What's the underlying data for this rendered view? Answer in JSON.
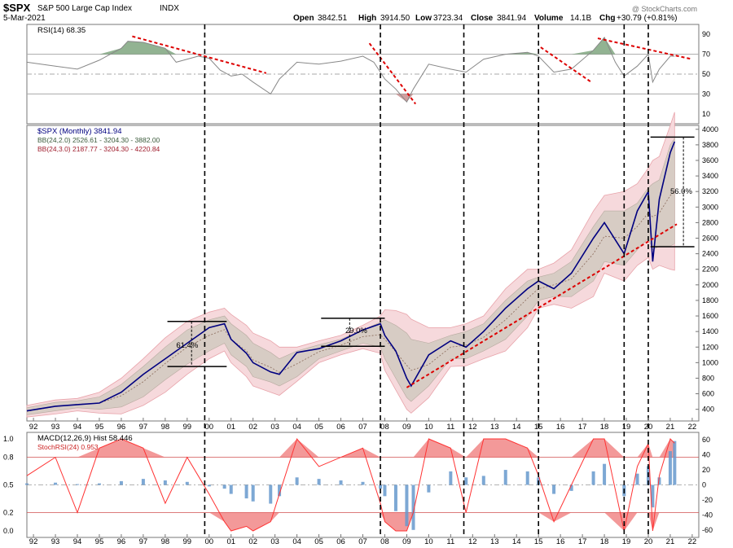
{
  "header": {
    "symbol": "$SPX",
    "name": "S&P 500 Large Cap Index",
    "exchange": "INDX",
    "date": "5-Mar-2021",
    "open_label": "Open",
    "open": "3842.51",
    "high_label": "High",
    "high": "3914.50",
    "low_label": "Low",
    "low": "3723.34",
    "close_label": "Close",
    "close": "3841.94",
    "volume_label": "Volume",
    "volume": "14.1B",
    "chg_label": "Chg",
    "chg": "+30.79 (+0.81%)"
  },
  "watermark": "@ StockCharts.com",
  "colors": {
    "price": "#000080",
    "bb2_fill": "#d7ccc4",
    "bb3_fill": "#f6d9dc",
    "bb3_edge": "#e8a3aa",
    "trend": "#dd0000",
    "rsi_line": "#888888",
    "rsi_fill": "#6e9a6e",
    "macd_hist": "#6699cc",
    "stoch": "#ff3333",
    "stoch_fill": "#f08080"
  },
  "chart_data": [
    {
      "type": "line",
      "panel": "rsi",
      "legend": "RSI(14) 68.35",
      "ylim": [
        0,
        100
      ],
      "yticks": [
        90,
        70,
        50,
        30,
        10
      ],
      "levels": [
        70,
        50,
        30
      ],
      "x": [
        1991.7,
        1993,
        1994,
        1995,
        1996,
        1996.3,
        1997,
        1998,
        1998.5,
        1999.5,
        2000,
        2000.5,
        2001,
        2001.5,
        2002,
        2002.8,
        2003.2,
        2004,
        2005,
        2006,
        2007,
        2007.5,
        2008,
        2008.5,
        2009,
        2009.3,
        2010,
        2011,
        2011.7,
        2012.5,
        2013.5,
        2014.5,
        2015,
        2015.7,
        2016.5,
        2017.5,
        2018,
        2018.5,
        2018.9,
        2019.5,
        2020,
        2020.2,
        2020.5,
        2021,
        2021.2
      ],
      "values": [
        62,
        58,
        55,
        64,
        76,
        83,
        82,
        76,
        62,
        68,
        66,
        54,
        48,
        50,
        42,
        30,
        45,
        62,
        60,
        63,
        68,
        62,
        45,
        35,
        22,
        35,
        60,
        55,
        52,
        65,
        70,
        72,
        68,
        52,
        55,
        74,
        87,
        62,
        48,
        58,
        70,
        42,
        55,
        68,
        68
      ],
      "trendlines": [
        [
          1996.5,
          88,
          2002.6,
          51
        ],
        [
          2007.3,
          81,
          2009.4,
          20
        ],
        [
          2015.1,
          77,
          2017.4,
          42
        ],
        [
          2017.7,
          86,
          2022,
          65
        ]
      ]
    },
    {
      "type": "line",
      "panel": "price",
      "legend": [
        "$SPX (Monthly) 3841.94",
        "BB(24,2.0) 2526.61 - 3204.30 - 3882.00",
        "BB(24,3.0) 2187.77 - 3204.30 - 4220.84"
      ],
      "ylim": [
        250,
        4050
      ],
      "yticks": [
        4000,
        3800,
        3600,
        3400,
        3200,
        3000,
        2800,
        2600,
        2400,
        2200,
        2000,
        1800,
        1600,
        1400,
        1200,
        1000,
        800,
        600,
        400
      ],
      "x": [
        1991.7,
        1993,
        1994,
        1995,
        1996,
        1997,
        1998,
        1999,
        2000,
        2000.7,
        2001,
        2001.7,
        2002,
        2002.8,
        2003.2,
        2004,
        2005,
        2006,
        2007,
        2007.8,
        2008,
        2008.5,
        2009,
        2009.2,
        2010,
        2011,
        2011.7,
        2012.5,
        2013.5,
        2014.5,
        2015,
        2015.7,
        2016.5,
        2017.5,
        2018,
        2018.9,
        2019.5,
        2020,
        2020.2,
        2020.5,
        2021,
        2021.2
      ],
      "values": [
        380,
        440,
        460,
        480,
        620,
        850,
        1050,
        1250,
        1450,
        1500,
        1300,
        1120,
        1000,
        880,
        850,
        1130,
        1180,
        1280,
        1420,
        1500,
        1350,
        1150,
        800,
        700,
        1100,
        1280,
        1200,
        1400,
        1700,
        1950,
        2050,
        1950,
        2150,
        2600,
        2800,
        2400,
        2950,
        3200,
        2300,
        3100,
        3700,
        3841.94
      ],
      "bb2_upper": [
        420,
        490,
        510,
        560,
        720,
        950,
        1200,
        1420,
        1550,
        1600,
        1500,
        1350,
        1250,
        1130,
        1050,
        1150,
        1230,
        1300,
        1420,
        1520,
        1550,
        1480,
        1380,
        1300,
        1250,
        1350,
        1400,
        1500,
        1800,
        2050,
        2100,
        2150,
        2300,
        2750,
        2950,
        2950,
        3050,
        3250,
        3300,
        3350,
        3800,
        3882
      ],
      "bb2_lower": [
        330,
        380,
        420,
        400,
        430,
        560,
        780,
        980,
        1150,
        1250,
        1100,
        950,
        820,
        750,
        700,
        820,
        1050,
        1150,
        1250,
        1200,
        1050,
        800,
        550,
        500,
        700,
        1050,
        1050,
        1150,
        1300,
        1600,
        1800,
        1850,
        1850,
        2050,
        2300,
        2250,
        2450,
        2600,
        2450,
        2500,
        2500,
        2526.61
      ],
      "bb3_upper": [
        450,
        520,
        540,
        620,
        800,
        1050,
        1320,
        1530,
        1650,
        1700,
        1620,
        1480,
        1380,
        1280,
        1200,
        1200,
        1280,
        1350,
        1480,
        1600,
        1680,
        1670,
        1620,
        1560,
        1450,
        1450,
        1500,
        1600,
        1950,
        2200,
        2200,
        2280,
        2450,
        2950,
        3150,
        3200,
        3300,
        3500,
        3600,
        3650,
        4050,
        4220.84
      ],
      "bb3_lower": [
        300,
        340,
        380,
        350,
        340,
        450,
        620,
        850,
        1050,
        1150,
        1000,
        820,
        700,
        620,
        580,
        760,
        1000,
        1100,
        1180,
        1120,
        900,
        650,
        400,
        350,
        550,
        950,
        960,
        1050,
        1150,
        1450,
        1700,
        1750,
        1700,
        1850,
        2150,
        2050,
        2250,
        2350,
        2200,
        2250,
        2200,
        2187.77
      ],
      "bb_mid": [
        375,
        435,
        465,
        480,
        575,
        755,
        990,
        1200,
        1350,
        1425,
        1300,
        1150,
        1035,
        940,
        875,
        985,
        1140,
        1225,
        1335,
        1360,
        1300,
        1140,
        965,
        900,
        975,
        1200,
        1225,
        1325,
        1550,
        1825,
        1950,
        2000,
        2075,
        2400,
        2625,
        2600,
        2750,
        2925,
        2875,
        2925,
        3150,
        3204.3
      ],
      "annotations": [
        {
          "label": "61.4%",
          "x": 1999.0,
          "y": 1190
        },
        {
          "label": "29.0%",
          "x": 2006.7,
          "y": 1380
        },
        {
          "label": "56.0%",
          "x": 2021.5,
          "y": 3170
        }
      ],
      "hlines": [
        [
          1998.1,
          2000.8,
          1530
        ],
        [
          1998.1,
          2000.8,
          950
        ],
        [
          2005.1,
          2008.0,
          1570
        ],
        [
          2005.1,
          2008.0,
          1210
        ],
        [
          2020.1,
          2022.1,
          3900
        ],
        [
          2020.1,
          2022.1,
          2490
        ]
      ],
      "measures": [
        [
          1999.2,
          1530,
          950
        ],
        [
          2006.4,
          1570,
          1210
        ],
        [
          2021.6,
          3900,
          2490
        ]
      ],
      "trendlines": [
        [
          2009.0,
          680,
          2021.3,
          2780
        ]
      ]
    },
    {
      "type": "bar",
      "panel": "macd",
      "legend": [
        "MACD(12,26,9) Hist 58.446",
        "StochRSI(24) 0.953"
      ],
      "left_yticks": [
        "1.0",
        "0.8",
        "0.5",
        "0.2",
        "0.0"
      ],
      "right_yticks": [
        60,
        40,
        20,
        0,
        -20,
        -40,
        -60
      ],
      "ylim_right": [
        -70,
        70
      ],
      "x": [
        1991.7,
        1993,
        1994,
        1995,
        1996,
        1997,
        1998,
        1999,
        2000,
        2000.7,
        2001,
        2001.7,
        2002,
        2002.8,
        2003.2,
        2004,
        2005,
        2006,
        2007,
        2007.8,
        2008,
        2008.5,
        2009,
        2009.3,
        2010,
        2011,
        2011.7,
        2012.5,
        2013.5,
        2014.5,
        2015,
        2015.7,
        2016.5,
        2017.5,
        2018,
        2018.9,
        2019.5,
        2020,
        2020.2,
        2020.5,
        2021,
        2021.2
      ],
      "hist": [
        2,
        3,
        1,
        2,
        5,
        8,
        6,
        4,
        -2,
        -5,
        -12,
        -18,
        -22,
        -25,
        -15,
        10,
        8,
        6,
        4,
        -5,
        -15,
        -35,
        -55,
        -60,
        -10,
        18,
        10,
        12,
        20,
        18,
        10,
        -12,
        -8,
        18,
        28,
        -15,
        15,
        25,
        -30,
        10,
        45,
        58.446
      ],
      "stoch": [
        0.6,
        0.8,
        0.2,
        0.9,
        1.0,
        0.9,
        0.3,
        0.8,
        0.4,
        0.1,
        0.0,
        0.05,
        0.0,
        0.1,
        0.4,
        1.0,
        0.7,
        0.8,
        0.9,
        0.3,
        0.1,
        0.0,
        0.0,
        0.2,
        1.0,
        0.9,
        0.2,
        1.0,
        1.0,
        0.9,
        0.6,
        0.1,
        0.5,
        1.0,
        1.0,
        0.0,
        0.7,
        0.95,
        0.0,
        0.6,
        1.0,
        0.953
      ]
    }
  ],
  "x_axis": {
    "ticks": [
      1992,
      1993,
      1994,
      1995,
      1996,
      1997,
      1998,
      1999,
      2000,
      2001,
      2002,
      2003,
      2004,
      2005,
      2006,
      2007,
      2008,
      2009,
      2010,
      2011,
      2012,
      2013,
      2014,
      2015,
      2016,
      2017,
      2018,
      2019,
      2020,
      2021,
      2022
    ],
    "labels": [
      "92",
      "93",
      "94",
      "95",
      "96",
      "97",
      "98",
      "99",
      "00",
      "01",
      "02",
      "03",
      "04",
      "05",
      "06",
      "07",
      "08",
      "09",
      "10",
      "11",
      "12",
      "13",
      "14",
      "15",
      "16",
      "17",
      "18",
      "19",
      "20",
      "21",
      "22"
    ],
    "range": [
      1991.7,
      2022.3
    ]
  },
  "vlines": [
    1999.8,
    2007.8,
    2011.6,
    2015.0,
    2018.9,
    2020.0
  ]
}
